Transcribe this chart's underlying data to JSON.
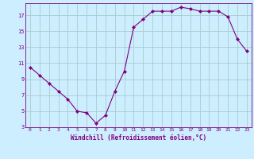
{
  "x": [
    0,
    1,
    2,
    3,
    4,
    5,
    6,
    7,
    8,
    9,
    10,
    11,
    12,
    13,
    14,
    15,
    16,
    17,
    18,
    19,
    20,
    21,
    22,
    23
  ],
  "y": [
    10.5,
    9.5,
    8.5,
    7.5,
    6.5,
    5.0,
    4.8,
    3.5,
    4.5,
    7.5,
    10.0,
    15.5,
    16.5,
    17.5,
    17.5,
    17.5,
    18.0,
    17.8,
    17.5,
    17.5,
    17.5,
    16.8,
    14.0,
    12.5
  ],
  "line_color": "#800080",
  "marker_color": "#800080",
  "bg_color": "#cceeff",
  "grid_color": "#aacccc",
  "xlabel": "Windchill (Refroidissement éolien,°C)",
  "xlabel_color": "#800080",
  "tick_color": "#800080",
  "ylim": [
    3,
    18.5
  ],
  "xlim": [
    -0.5,
    23.5
  ],
  "yticks": [
    3,
    5,
    7,
    9,
    11,
    13,
    15,
    17
  ],
  "xticks": [
    0,
    1,
    2,
    3,
    4,
    5,
    6,
    7,
    8,
    9,
    10,
    11,
    12,
    13,
    14,
    15,
    16,
    17,
    18,
    19,
    20,
    21,
    22,
    23
  ],
  "figsize": [
    3.2,
    2.0
  ],
  "dpi": 100
}
